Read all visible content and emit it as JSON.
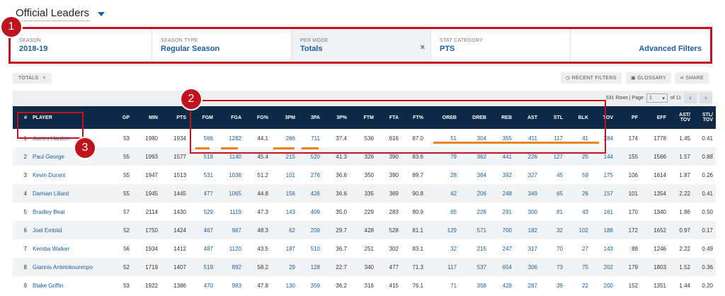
{
  "header": {
    "title": "Official Leaders"
  },
  "filters": [
    {
      "label": "SEASON",
      "value": "2018-19"
    },
    {
      "label": "SEASON TYPE",
      "value": "Regular Season"
    },
    {
      "label": "PER MODE",
      "value": "Totals",
      "clear_icon": "×"
    },
    {
      "label": "STAT CATEGORY",
      "value": "PTS"
    }
  ],
  "advanced_filters": "Advanced Filters",
  "chip": {
    "label": "TOTALS",
    "close": "×"
  },
  "toolbar": {
    "recent_filters": "◷ RECENT FILTERS",
    "glossary": "▣ GLOSSARY",
    "share": "⋖ SHARE"
  },
  "pager": {
    "rows_text": "531 Rows | Page",
    "page": "1",
    "of_text": "of 11",
    "prev": "‹",
    "next": "›"
  },
  "badges": [
    "1",
    "2",
    "3"
  ],
  "table": {
    "columns": [
      "#",
      "PLAYER",
      "GP",
      "MIN",
      "PTS",
      "FGM",
      "FGA",
      "FG%",
      "3PM",
      "3PA",
      "3P%",
      "FTM",
      "FTA",
      "FT%",
      "OREB",
      "DREB",
      "REB",
      "AST",
      "STL",
      "BLK",
      "TOV",
      "PF",
      "EFF",
      "AST/ TOV",
      "STL/ TOV"
    ],
    "rows": [
      [
        "1",
        "James Harden",
        "53",
        "1980",
        "1934",
        "566",
        "1282",
        "44.1",
        "266",
        "711",
        "37.4",
        "536",
        "616",
        "87.0",
        "51",
        "304",
        "355",
        "411",
        "117",
        "41",
        "284",
        "174",
        "1778",
        "1.45",
        "0.41"
      ],
      [
        "2",
        "Paul George",
        "55",
        "1993",
        "1577",
        "518",
        "1140",
        "45.4",
        "215",
        "520",
        "41.3",
        "326",
        "390",
        "83.6",
        "79",
        "362",
        "441",
        "226",
        "127",
        "25",
        "144",
        "155",
        "1566",
        "1.57",
        "0.88"
      ],
      [
        "3",
        "Kevin Durant",
        "55",
        "1947",
        "1513",
        "531",
        "1038",
        "51.2",
        "101",
        "276",
        "36.6",
        "350",
        "390",
        "89.7",
        "28",
        "364",
        "392",
        "327",
        "45",
        "59",
        "175",
        "106",
        "1614",
        "1.87",
        "0.26"
      ],
      [
        "4",
        "Damian Lillard",
        "55",
        "1945",
        "1445",
        "477",
        "1065",
        "44.8",
        "156",
        "426",
        "36.6",
        "335",
        "369",
        "90.8",
        "42",
        "206",
        "248",
        "349",
        "65",
        "26",
        "157",
        "101",
        "1354",
        "2.22",
        "0.41"
      ],
      [
        "5",
        "Bradley Beal",
        "57",
        "2114",
        "1430",
        "529",
        "1119",
        "47.3",
        "143",
        "409",
        "35.0",
        "229",
        "283",
        "80.9",
        "65",
        "226",
        "291",
        "300",
        "81",
        "43",
        "161",
        "170",
        "1340",
        "1.86",
        "0.50"
      ],
      [
        "6",
        "Joel Embiid",
        "52",
        "1750",
        "1424",
        "467",
        "967",
        "48.3",
        "62",
        "209",
        "29.7",
        "428",
        "528",
        "81.1",
        "129",
        "571",
        "700",
        "182",
        "32",
        "102",
        "188",
        "172",
        "1652",
        "0.97",
        "0.17"
      ],
      [
        "7",
        "Kemba Walker",
        "56",
        "1934",
        "1412",
        "487",
        "1120",
        "43.5",
        "187",
        "510",
        "36.7",
        "251",
        "302",
        "83.1",
        "32",
        "215",
        "247",
        "317",
        "70",
        "27",
        "143",
        "88",
        "1246",
        "2.22",
        "0.49"
      ],
      [
        "8",
        "Giannis Antetokounmpo",
        "52",
        "1719",
        "1407",
        "519",
        "892",
        "58.2",
        "29",
        "128",
        "22.7",
        "340",
        "477",
        "71.3",
        "117",
        "537",
        "654",
        "306",
        "73",
        "75",
        "202",
        "179",
        "1803",
        "1.52",
        "0.36"
      ],
      [
        "9",
        "Blake Griffin",
        "53",
        "1922",
        "1386",
        "470",
        "983",
        "47.8",
        "130",
        "359",
        "36.2",
        "316",
        "415",
        "76.1",
        "71",
        "358",
        "429",
        "287",
        "39",
        "22",
        "200",
        "152",
        "1351",
        "1.44",
        "0.20"
      ]
    ]
  },
  "colors": {
    "accent": "#c0121f",
    "link": "#1d5fa3",
    "header_bg": "#0e2a47",
    "underline": "#e8821d"
  }
}
